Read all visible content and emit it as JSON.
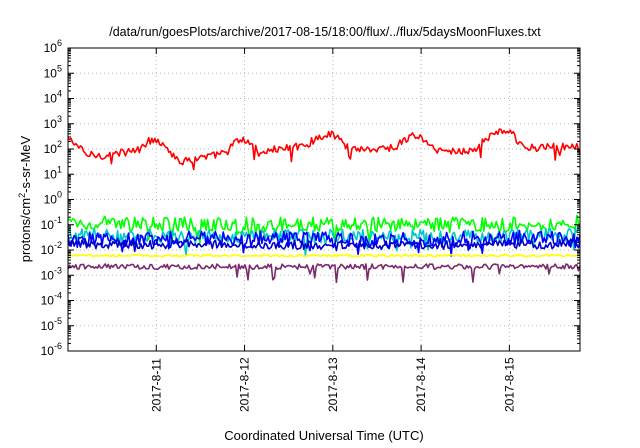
{
  "chart_data": {
    "type": "line",
    "title": "/data/run/goesPlots/archive/2017-08-15/18:00/flux/../flux/5daysMoonFluxes.txt",
    "xlabel": "Coordinated Universal Time (UTC)",
    "ylabel_main": "protons/cm",
    "ylabel_sup": "2",
    "ylabel_tail": "-s-sr-MeV",
    "yscale": "log",
    "ylim": [
      1e-06,
      1000000.0
    ],
    "xlim": [
      0,
      5.8
    ],
    "grid": true,
    "y_ticks": [
      {
        "base": "10",
        "exp": "-6",
        "value": -6
      },
      {
        "base": "10",
        "exp": "-5",
        "value": -5
      },
      {
        "base": "10",
        "exp": "-4",
        "value": -4
      },
      {
        "base": "10",
        "exp": "-3",
        "value": -3
      },
      {
        "base": "10",
        "exp": "-2",
        "value": -2
      },
      {
        "base": "10",
        "exp": "-1",
        "value": -1
      },
      {
        "base": "10",
        "exp": "0",
        "value": 0
      },
      {
        "base": "10",
        "exp": "1",
        "value": 1
      },
      {
        "base": "10",
        "exp": "2",
        "value": 2
      },
      {
        "base": "10",
        "exp": "3",
        "value": 3
      },
      {
        "base": "10",
        "exp": "4",
        "value": 4
      },
      {
        "base": "10",
        "exp": "5",
        "value": 5
      },
      {
        "base": "10",
        "exp": "6",
        "value": 6
      }
    ],
    "x_ticks": [
      {
        "label": "2017-8-11",
        "value": 1
      },
      {
        "label": "2017-8-12",
        "value": 2
      },
      {
        "label": "2017-8-13",
        "value": 3
      },
      {
        "label": "2017-8-14",
        "value": 4
      },
      {
        "label": "2017-8-15",
        "value": 5
      }
    ],
    "series": [
      {
        "color": "#ff0000",
        "noise": 0.05,
        "spikes": 0.03,
        "anchors": [
          [
            0,
            250
          ],
          [
            0.1,
            150
          ],
          [
            0.2,
            60
          ],
          [
            0.4,
            55
          ],
          [
            0.6,
            70
          ],
          [
            0.8,
            90
          ],
          [
            0.9,
            200
          ],
          [
            1.0,
            240
          ],
          [
            1.1,
            150
          ],
          [
            1.2,
            50
          ],
          [
            1.3,
            30
          ],
          [
            1.4,
            40
          ],
          [
            1.6,
            50
          ],
          [
            1.8,
            75
          ],
          [
            1.9,
            200
          ],
          [
            2.0,
            220
          ],
          [
            2.1,
            150
          ],
          [
            2.15,
            70
          ],
          [
            2.3,
            90
          ],
          [
            2.5,
            110
          ],
          [
            2.7,
            150
          ],
          [
            2.85,
            300
          ],
          [
            2.95,
            400
          ],
          [
            3.05,
            320
          ],
          [
            3.15,
            120
          ],
          [
            3.3,
            100
          ],
          [
            3.5,
            100
          ],
          [
            3.7,
            120
          ],
          [
            3.8,
            200
          ],
          [
            3.9,
            350
          ],
          [
            4.0,
            290
          ],
          [
            4.1,
            120
          ],
          [
            4.2,
            90
          ],
          [
            4.4,
            80
          ],
          [
            4.6,
            90
          ],
          [
            4.7,
            200
          ],
          [
            4.85,
            450
          ],
          [
            4.95,
            550
          ],
          [
            5.05,
            350
          ],
          [
            5.1,
            150
          ],
          [
            5.3,
            110
          ],
          [
            5.5,
            120
          ],
          [
            5.8,
            120
          ]
        ]
      },
      {
        "color": "#00ff00",
        "noise": 0.1,
        "spikes": 0.04,
        "anchors": [
          [
            0,
            0.12
          ],
          [
            1,
            0.1
          ],
          [
            2,
            0.1
          ],
          [
            3,
            0.1
          ],
          [
            4,
            0.1
          ],
          [
            5,
            0.1
          ],
          [
            5.8,
            0.12
          ]
        ]
      },
      {
        "color": "#00c8c8",
        "noise": 0.09,
        "spikes": 0.04,
        "anchors": [
          [
            0,
            0.04
          ],
          [
            1,
            0.035
          ],
          [
            2,
            0.035
          ],
          [
            3,
            0.035
          ],
          [
            4,
            0.035
          ],
          [
            5,
            0.035
          ],
          [
            5.8,
            0.04
          ]
        ]
      },
      {
        "color": "#0000ff",
        "noise": 0.1,
        "spikes": 0.05,
        "anchors": [
          [
            0,
            0.025
          ],
          [
            1,
            0.03
          ],
          [
            2,
            0.03
          ],
          [
            3,
            0.025
          ],
          [
            4,
            0.025
          ],
          [
            5,
            0.03
          ],
          [
            5.8,
            0.025
          ]
        ]
      },
      {
        "color": "#0000cc",
        "noise": 0.06,
        "spikes": 0.03,
        "anchors": [
          [
            0,
            0.017
          ],
          [
            1,
            0.017
          ],
          [
            2,
            0.016
          ],
          [
            3,
            0.016
          ],
          [
            4,
            0.016
          ],
          [
            5,
            0.017
          ],
          [
            5.8,
            0.017
          ]
        ]
      },
      {
        "color": "#ffff00",
        "noise": 0.015,
        "spikes": 0.0,
        "anchors": [
          [
            0,
            0.006
          ],
          [
            5.8,
            0.006
          ]
        ]
      },
      {
        "color": "#7a2a6a",
        "noise": 0.035,
        "spikes": 0.03,
        "anchors": [
          [
            0,
            0.0022
          ],
          [
            1,
            0.0022
          ],
          [
            2,
            0.0022
          ],
          [
            3,
            0.0022
          ],
          [
            4,
            0.0022
          ],
          [
            5,
            0.0022
          ],
          [
            5.8,
            0.0022
          ]
        ]
      }
    ]
  }
}
